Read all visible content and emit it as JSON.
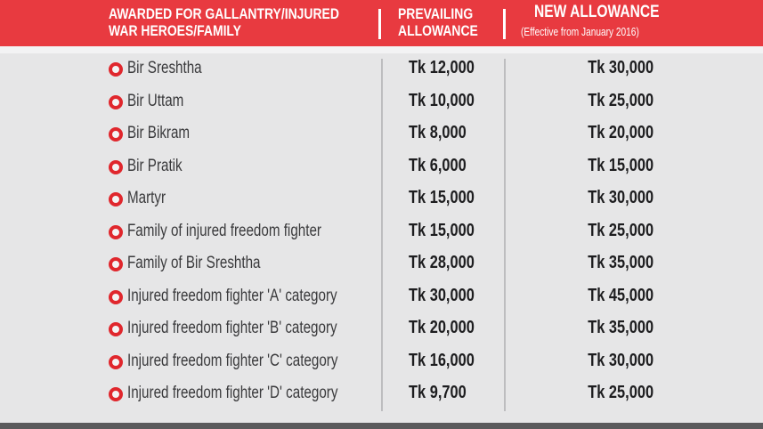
{
  "header": {
    "col1_line1": "AWARDED FOR GALLANTRY/INJURED",
    "col1_line2": "WAR HEROES/FAMILY",
    "col2_line1": "PREVAILING",
    "col2_line2": "ALLOWANCE",
    "col3_line1": "NEW ALLOWANCE",
    "col3_sub": "(Effective from January 2016)"
  },
  "colors": {
    "header_bg": "#e83a40",
    "bullet": "#e0272d",
    "page_bg": "#e6e6e7"
  },
  "rows": [
    {
      "label": "Bir Sreshtha",
      "prevailing": "Tk 12,000",
      "new": "Tk 30,000"
    },
    {
      "label": "Bir Uttam",
      "prevailing": "Tk 10,000",
      "new": "Tk 25,000"
    },
    {
      "label": "Bir Bikram",
      "prevailing": "Tk 8,000",
      "new": "Tk 20,000"
    },
    {
      "label": "Bir Pratik",
      "prevailing": "Tk 6,000",
      "new": "Tk 15,000"
    },
    {
      "label": "Martyr",
      "prevailing": "Tk 15,000",
      "new": "Tk 30,000"
    },
    {
      "label": "Family of injured freedom fighter",
      "prevailing": "Tk 15,000",
      "new": "Tk 25,000"
    },
    {
      "label": "Family of Bir Sreshtha",
      "prevailing": "Tk 28,000",
      "new": "Tk 35,000"
    },
    {
      "label": "Injured freedom fighter 'A' category",
      "prevailing": "Tk 30,000",
      "new": "Tk 45,000"
    },
    {
      "label": "Injured  freedom fighter 'B' category",
      "prevailing": "Tk 20,000",
      "new": "Tk 35,000"
    },
    {
      "label": "Injured  freedom fighter 'C' category",
      "prevailing": "Tk 16,000",
      "new": "Tk 30,000"
    },
    {
      "label": "Injured  freedom fighter 'D' category",
      "prevailing": "Tk 9,700",
      "new": "Tk 25,000"
    }
  ]
}
